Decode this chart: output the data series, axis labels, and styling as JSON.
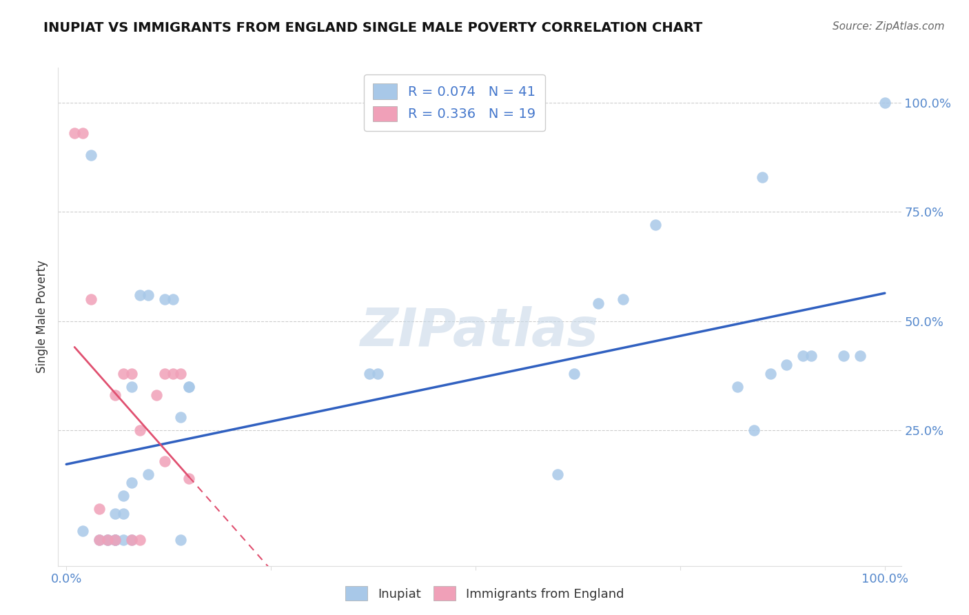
{
  "title": "INUPIAT VS IMMIGRANTS FROM ENGLAND SINGLE MALE POVERTY CORRELATION CHART",
  "source": "Source: ZipAtlas.com",
  "ylabel": "Single Male Poverty",
  "legend_labels": [
    "Inupiat",
    "Immigrants from England"
  ],
  "blue_color": "#a8c8e8",
  "pink_color": "#f0a0b8",
  "blue_line_color": "#3060c0",
  "pink_line_color": "#e05070",
  "watermark": "ZIPatlas",
  "inupiat_x": [
    0.02,
    0.03,
    0.05,
    0.05,
    0.06,
    0.06,
    0.06,
    0.07,
    0.07,
    0.08,
    0.08,
    0.09,
    0.1,
    0.1,
    0.12,
    0.13,
    0.14,
    0.15,
    0.37,
    0.38,
    0.6,
    0.62,
    0.65,
    0.68,
    0.72,
    0.82,
    0.84,
    0.86,
    0.88,
    0.9,
    0.91,
    0.95,
    0.97,
    1.0,
    0.04,
    0.06,
    0.07,
    0.08,
    0.14,
    0.15,
    0.85
  ],
  "inupiat_y": [
    0.02,
    0.88,
    0.0,
    0.0,
    0.0,
    0.0,
    0.06,
    0.0,
    0.06,
    0.0,
    0.35,
    0.56,
    0.56,
    0.15,
    0.55,
    0.55,
    0.28,
    0.35,
    0.38,
    0.38,
    0.15,
    0.38,
    0.54,
    0.55,
    0.72,
    0.35,
    0.25,
    0.38,
    0.4,
    0.42,
    0.42,
    0.42,
    0.42,
    1.0,
    0.0,
    0.0,
    0.1,
    0.13,
    0.0,
    0.35,
    0.83
  ],
  "england_x": [
    0.01,
    0.02,
    0.03,
    0.04,
    0.04,
    0.05,
    0.06,
    0.06,
    0.07,
    0.08,
    0.08,
    0.09,
    0.09,
    0.11,
    0.12,
    0.12,
    0.13,
    0.14,
    0.15
  ],
  "england_y": [
    0.93,
    0.93,
    0.55,
    0.0,
    0.07,
    0.0,
    0.0,
    0.33,
    0.38,
    0.0,
    0.38,
    0.0,
    0.25,
    0.33,
    0.18,
    0.38,
    0.38,
    0.38,
    0.14
  ],
  "xlim": [
    0.0,
    1.0
  ],
  "ylim": [
    0.0,
    1.0
  ],
  "ytick_vals": [
    0.25,
    0.5,
    0.75,
    1.0
  ],
  "ytick_labels": [
    "25.0%",
    "50.0%",
    "75.0%",
    "100.0%"
  ],
  "xtick_vals": [
    0.0,
    1.0
  ],
  "xtick_labels": [
    "0.0%",
    "100.0%"
  ]
}
